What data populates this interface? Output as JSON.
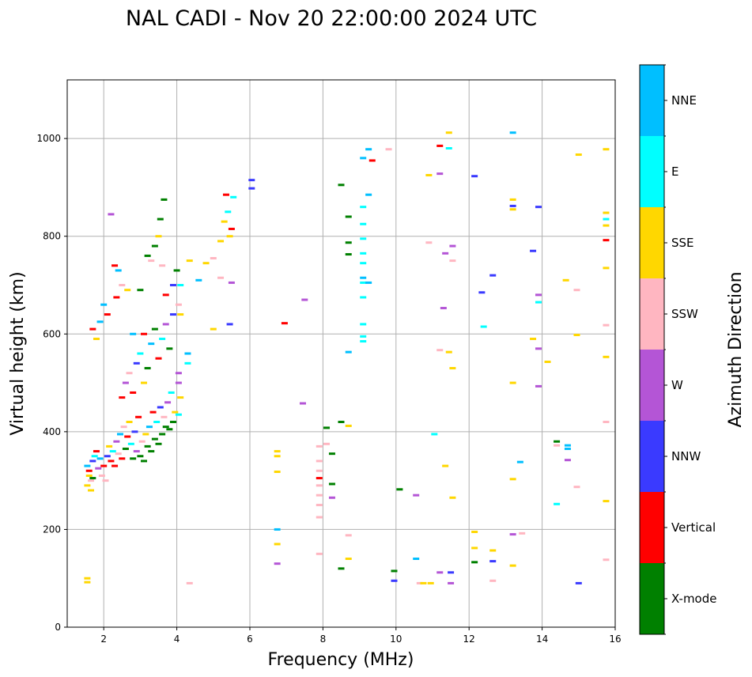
{
  "chart_data": {
    "type": "scatter",
    "title": "NAL CADI - Nov 20 22:00:00 2024 UTC",
    "xlabel": "Frequency (MHz)",
    "ylabel": "Virtual height (km)",
    "xlim": [
      1,
      16
    ],
    "ylim": [
      0,
      1120
    ],
    "xticks": [
      2,
      4,
      6,
      8,
      10,
      12,
      14,
      16
    ],
    "yticks": [
      0,
      200,
      400,
      600,
      800,
      1000
    ],
    "grid": true,
    "colorbar": {
      "label": "Azimuth Direction",
      "categories": [
        {
          "name": "X-mode",
          "color": "#008000"
        },
        {
          "name": "Vertical",
          "color": "#ff0000"
        },
        {
          "name": "NNW",
          "color": "#3a3aff"
        },
        {
          "name": "W",
          "color": "#b455d6"
        },
        {
          "name": "SSW",
          "color": "#ffb6c1"
        },
        {
          "name": "SSE",
          "color": "#ffd700"
        },
        {
          "name": "E",
          "color": "#00ffff"
        },
        {
          "name": "NNE",
          "color": "#00bfff"
        }
      ]
    },
    "points": [
      [
        1.55,
        330,
        "NNE"
      ],
      [
        1.6,
        320,
        "Vertical"
      ],
      [
        1.65,
        300,
        "SSW"
      ],
      [
        1.7,
        340,
        "NNW"
      ],
      [
        1.6,
        310,
        "SSE"
      ],
      [
        1.75,
        350,
        "E"
      ],
      [
        1.55,
        290,
        "SSE"
      ],
      [
        1.8,
        360,
        "Vertical"
      ],
      [
        1.85,
        325,
        "W"
      ],
      [
        1.9,
        345,
        "NNE"
      ],
      [
        1.95,
        310,
        "SSW"
      ],
      [
        2.0,
        330,
        "Vertical"
      ],
      [
        1.7,
        305,
        "X-mode"
      ],
      [
        1.65,
        280,
        "SSE"
      ],
      [
        1.55,
        100,
        "SSE"
      ],
      [
        1.55,
        92,
        "SSE"
      ],
      [
        2.05,
        300,
        "SSW"
      ],
      [
        2.1,
        350,
        "NNW"
      ],
      [
        2.15,
        370,
        "SSE"
      ],
      [
        2.2,
        340,
        "Vertical"
      ],
      [
        2.25,
        360,
        "E"
      ],
      [
        2.3,
        330,
        "Vertical"
      ],
      [
        2.35,
        380,
        "W"
      ],
      [
        2.4,
        355,
        "SSW"
      ],
      [
        2.45,
        395,
        "NNE"
      ],
      [
        2.5,
        345,
        "Vertical"
      ],
      [
        2.55,
        410,
        "SSW"
      ],
      [
        2.6,
        365,
        "X-mode"
      ],
      [
        2.65,
        390,
        "Vertical"
      ],
      [
        2.7,
        420,
        "SSE"
      ],
      [
        2.75,
        375,
        "E"
      ],
      [
        2.8,
        345,
        "X-mode"
      ],
      [
        2.85,
        400,
        "NNW"
      ],
      [
        2.9,
        360,
        "W"
      ],
      [
        2.95,
        430,
        "Vertical"
      ],
      [
        3.0,
        350,
        "X-mode"
      ],
      [
        3.05,
        380,
        "SSW"
      ],
      [
        3.1,
        340,
        "X-mode"
      ],
      [
        3.15,
        395,
        "SSE"
      ],
      [
        3.2,
        370,
        "X-mode"
      ],
      [
        3.25,
        410,
        "NNE"
      ],
      [
        3.3,
        360,
        "X-mode"
      ],
      [
        3.35,
        440,
        "Vertical"
      ],
      [
        3.4,
        385,
        "X-mode"
      ],
      [
        3.45,
        420,
        "E"
      ],
      [
        3.5,
        375,
        "X-mode"
      ],
      [
        3.55,
        450,
        "NNW"
      ],
      [
        3.6,
        395,
        "X-mode"
      ],
      [
        3.65,
        430,
        "SSW"
      ],
      [
        3.7,
        410,
        "X-mode"
      ],
      [
        3.75,
        460,
        "W"
      ],
      [
        3.8,
        405,
        "X-mode"
      ],
      [
        3.85,
        480,
        "E"
      ],
      [
        3.9,
        420,
        "X-mode"
      ],
      [
        3.95,
        440,
        "SSE"
      ],
      [
        2.5,
        470,
        "Vertical"
      ],
      [
        2.6,
        500,
        "W"
      ],
      [
        2.7,
        520,
        "SSW"
      ],
      [
        2.8,
        480,
        "Vertical"
      ],
      [
        2.9,
        540,
        "NNW"
      ],
      [
        3.0,
        560,
        "E"
      ],
      [
        3.1,
        500,
        "SSE"
      ],
      [
        3.2,
        530,
        "X-mode"
      ],
      [
        3.3,
        580,
        "NNE"
      ],
      [
        3.4,
        610,
        "X-mode"
      ],
      [
        3.5,
        550,
        "Vertical"
      ],
      [
        3.6,
        590,
        "E"
      ],
      [
        3.7,
        620,
        "W"
      ],
      [
        3.8,
        570,
        "X-mode"
      ],
      [
        3.9,
        640,
        "NNW"
      ],
      [
        4.05,
        660,
        "SSW"
      ],
      [
        4.1,
        640,
        "SSE"
      ],
      [
        4.05,
        520,
        "W"
      ],
      [
        4.05,
        500,
        "W"
      ],
      [
        4.1,
        470,
        "SSE"
      ],
      [
        4.05,
        435,
        "E"
      ],
      [
        4.3,
        540,
        "E"
      ],
      [
        4.3,
        560,
        "NNE"
      ],
      [
        1.7,
        610,
        "Vertical"
      ],
      [
        1.8,
        590,
        "SSE"
      ],
      [
        1.9,
        625,
        "NNE"
      ],
      [
        2.0,
        660,
        "NNE"
      ],
      [
        2.1,
        640,
        "Vertical"
      ],
      [
        2.3,
        740,
        "Vertical"
      ],
      [
        2.4,
        730,
        "NNE"
      ],
      [
        2.35,
        675,
        "Vertical"
      ],
      [
        2.2,
        845,
        "W"
      ],
      [
        2.5,
        700,
        "SSW"
      ],
      [
        2.65,
        690,
        "SSE"
      ],
      [
        2.8,
        600,
        "NNE"
      ],
      [
        3.0,
        690,
        "X-mode"
      ],
      [
        3.1,
        600,
        "Vertical"
      ],
      [
        3.2,
        760,
        "X-mode"
      ],
      [
        3.3,
        750,
        "SSW"
      ],
      [
        3.4,
        780,
        "X-mode"
      ],
      [
        3.5,
        800,
        "SSE"
      ],
      [
        3.55,
        835,
        "X-mode"
      ],
      [
        3.65,
        875,
        "X-mode"
      ],
      [
        3.6,
        740,
        "SSW"
      ],
      [
        3.7,
        680,
        "Vertical"
      ],
      [
        3.9,
        700,
        "NNW"
      ],
      [
        4.0,
        730,
        "X-mode"
      ],
      [
        4.1,
        700,
        "E"
      ],
      [
        4.35,
        750,
        "SSE"
      ],
      [
        4.6,
        710,
        "NNE"
      ],
      [
        4.8,
        745,
        "SSE"
      ],
      [
        5.0,
        610,
        "SSE"
      ],
      [
        5.0,
        755,
        "SSW"
      ],
      [
        5.2,
        790,
        "SSE"
      ],
      [
        5.3,
        830,
        "SSE"
      ],
      [
        5.35,
        885,
        "Vertical"
      ],
      [
        5.4,
        850,
        "E"
      ],
      [
        5.45,
        800,
        "SSE"
      ],
      [
        5.5,
        815,
        "Vertical"
      ],
      [
        5.5,
        705,
        "W"
      ],
      [
        5.55,
        880,
        "E"
      ],
      [
        5.2,
        715,
        "SSW"
      ],
      [
        5.45,
        620,
        "NNW"
      ],
      [
        6.05,
        915,
        "NNW"
      ],
      [
        6.05,
        898,
        "NNW"
      ],
      [
        4.35,
        90,
        "SSW"
      ],
      [
        6.75,
        360,
        "SSE"
      ],
      [
        6.75,
        350,
        "SSE"
      ],
      [
        6.75,
        318,
        "SSE"
      ],
      [
        6.75,
        200,
        "NNE"
      ],
      [
        6.75,
        170,
        "SSE"
      ],
      [
        6.75,
        130,
        "W"
      ],
      [
        6.95,
        622,
        "Vertical"
      ],
      [
        7.5,
        670,
        "W"
      ],
      [
        7.45,
        458,
        "W"
      ],
      [
        7.9,
        370,
        "SSW"
      ],
      [
        7.9,
        340,
        "SSW"
      ],
      [
        7.9,
        320,
        "SSW"
      ],
      [
        7.9,
        305,
        "Vertical"
      ],
      [
        7.9,
        290,
        "SSW"
      ],
      [
        7.9,
        270,
        "SSW"
      ],
      [
        7.9,
        250,
        "SSW"
      ],
      [
        7.9,
        225,
        "SSW"
      ],
      [
        7.9,
        150,
        "SSW"
      ],
      [
        8.1,
        375,
        "SSW"
      ],
      [
        8.1,
        408,
        "X-mode"
      ],
      [
        8.25,
        355,
        "X-mode"
      ],
      [
        8.25,
        293,
        "X-mode"
      ],
      [
        8.25,
        265,
        "W"
      ],
      [
        8.5,
        905,
        "X-mode"
      ],
      [
        8.5,
        420,
        "X-mode"
      ],
      [
        8.5,
        120,
        "X-mode"
      ],
      [
        8.7,
        840,
        "X-mode"
      ],
      [
        8.7,
        787,
        "X-mode"
      ],
      [
        8.7,
        763,
        "X-mode"
      ],
      [
        8.7,
        563,
        "NNE"
      ],
      [
        8.7,
        412,
        "SSE"
      ],
      [
        8.7,
        188,
        "SSW"
      ],
      [
        8.7,
        140,
        "SSE"
      ],
      [
        9.1,
        960,
        "NNE"
      ],
      [
        9.1,
        860,
        "E"
      ],
      [
        9.1,
        825,
        "E"
      ],
      [
        9.1,
        795,
        "E"
      ],
      [
        9.1,
        765,
        "E"
      ],
      [
        9.1,
        745,
        "E"
      ],
      [
        9.1,
        715,
        "NNE"
      ],
      [
        9.1,
        705,
        "E"
      ],
      [
        9.1,
        675,
        "E"
      ],
      [
        9.1,
        620,
        "E"
      ],
      [
        9.1,
        595,
        "E"
      ],
      [
        9.1,
        585,
        "E"
      ],
      [
        9.25,
        978,
        "NNE"
      ],
      [
        9.25,
        885,
        "NNE"
      ],
      [
        9.25,
        705,
        "NNE"
      ],
      [
        9.35,
        955,
        "Vertical"
      ],
      [
        9.8,
        978,
        "SSW"
      ],
      [
        9.95,
        115,
        "X-mode"
      ],
      [
        9.95,
        95,
        "NNW"
      ],
      [
        10.1,
        282,
        "X-mode"
      ],
      [
        10.55,
        270,
        "W"
      ],
      [
        10.55,
        140,
        "NNE"
      ],
      [
        10.65,
        90,
        "SSW"
      ],
      [
        10.75,
        90,
        "SSE"
      ],
      [
        10.9,
        925,
        "SSE"
      ],
      [
        10.9,
        787,
        "SSW"
      ],
      [
        10.95,
        90,
        "SSE"
      ],
      [
        11.05,
        395,
        "E"
      ],
      [
        11.2,
        985,
        "Vertical"
      ],
      [
        11.2,
        928,
        "W"
      ],
      [
        11.2,
        567,
        "SSW"
      ],
      [
        11.2,
        112,
        "W"
      ],
      [
        11.35,
        765,
        "W"
      ],
      [
        11.3,
        653,
        "W"
      ],
      [
        11.35,
        330,
        "SSE"
      ],
      [
        11.45,
        1012,
        "SSE"
      ],
      [
        11.45,
        980,
        "E"
      ],
      [
        11.45,
        563,
        "SSE"
      ],
      [
        11.5,
        112,
        "NNW"
      ],
      [
        11.5,
        90,
        "W"
      ],
      [
        11.55,
        780,
        "W"
      ],
      [
        11.55,
        750,
        "SSW"
      ],
      [
        11.55,
        530,
        "SSE"
      ],
      [
        11.55,
        265,
        "SSE"
      ],
      [
        12.15,
        923,
        "NNW"
      ],
      [
        12.15,
        195,
        "SSE"
      ],
      [
        12.15,
        162,
        "SSE"
      ],
      [
        12.15,
        133,
        "X-mode"
      ],
      [
        12.35,
        685,
        "NNW"
      ],
      [
        12.4,
        615,
        "E"
      ],
      [
        12.65,
        720,
        "NNW"
      ],
      [
        12.65,
        157,
        "SSE"
      ],
      [
        12.65,
        135,
        "NNW"
      ],
      [
        12.65,
        95,
        "SSW"
      ],
      [
        13.2,
        1012,
        "NNE"
      ],
      [
        13.2,
        875,
        "SSE"
      ],
      [
        13.2,
        862,
        "NNW"
      ],
      [
        13.2,
        855,
        "SSE"
      ],
      [
        13.2,
        500,
        "SSE"
      ],
      [
        13.2,
        303,
        "SSE"
      ],
      [
        13.2,
        190,
        "W"
      ],
      [
        13.2,
        126,
        "SSE"
      ],
      [
        13.4,
        338,
        "NNE"
      ],
      [
        13.45,
        192,
        "SSW"
      ],
      [
        13.75,
        770,
        "NNW"
      ],
      [
        13.75,
        590,
        "SSE"
      ],
      [
        13.9,
        860,
        "NNW"
      ],
      [
        13.9,
        680,
        "W"
      ],
      [
        13.9,
        665,
        "E"
      ],
      [
        13.9,
        570,
        "W"
      ],
      [
        13.9,
        493,
        "W"
      ],
      [
        14.15,
        543,
        "SSE"
      ],
      [
        14.4,
        380,
        "X-mode"
      ],
      [
        14.4,
        372,
        "SSW"
      ],
      [
        14.4,
        252,
        "E"
      ],
      [
        14.65,
        710,
        "SSE"
      ],
      [
        14.7,
        372,
        "NNE"
      ],
      [
        14.7,
        365,
        "NNE"
      ],
      [
        14.7,
        342,
        "W"
      ],
      [
        14.95,
        690,
        "SSW"
      ],
      [
        14.95,
        598,
        "SSE"
      ],
      [
        14.95,
        287,
        "SSW"
      ],
      [
        15.0,
        967,
        "SSE"
      ],
      [
        15.0,
        90,
        "NNW"
      ],
      [
        15.75,
        978,
        "SSE"
      ],
      [
        15.75,
        848,
        "SSE"
      ],
      [
        15.75,
        835,
        "E"
      ],
      [
        15.75,
        822,
        "SSE"
      ],
      [
        15.75,
        792,
        "Vertical"
      ],
      [
        15.75,
        735,
        "SSE"
      ],
      [
        15.75,
        618,
        "SSW"
      ],
      [
        15.75,
        553,
        "SSE"
      ],
      [
        15.75,
        420,
        "SSW"
      ],
      [
        15.75,
        258,
        "SSE"
      ],
      [
        15.75,
        138,
        "SSW"
      ]
    ]
  }
}
